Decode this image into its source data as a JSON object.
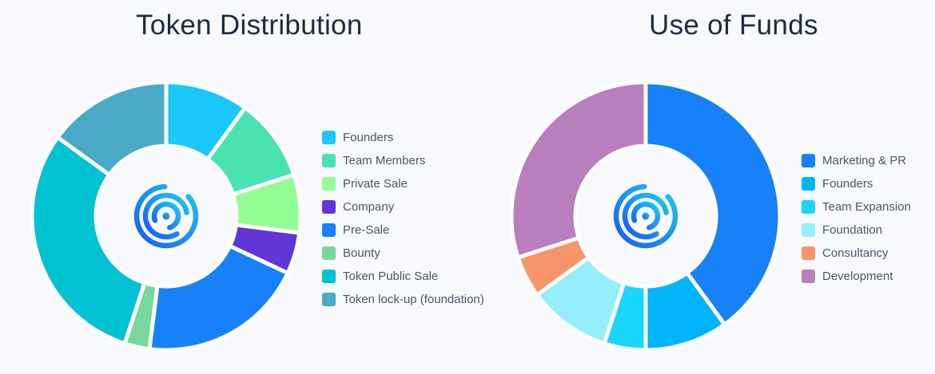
{
  "chart_data": [
    {
      "type": "pie",
      "title": "Token Distribution",
      "series": [
        {
          "label": "Founders",
          "value": 10,
          "color": "#1ac8fc"
        },
        {
          "label": "Team Members",
          "value": 10,
          "color": "#48e3b0"
        },
        {
          "label": "Private Sale",
          "value": 7,
          "color": "#92fd92"
        },
        {
          "label": "Company",
          "value": 5,
          "color": "#6237d8"
        },
        {
          "label": "Pre-Sale",
          "value": 20,
          "color": "#1681f9"
        },
        {
          "label": "Bounty",
          "value": 3,
          "color": "#77d89c"
        },
        {
          "label": "Token Public Sale",
          "value": 30,
          "color": "#00c2d3"
        },
        {
          "label": "Token lock-up (foundation)",
          "value": 15,
          "color": "#4ba9c8"
        }
      ],
      "legend": "right",
      "center_logo": "swirl-logo"
    },
    {
      "type": "pie",
      "title": "Use of Funds",
      "series": [
        {
          "label": "Marketing & PR",
          "value": 40,
          "color": "#1681f9"
        },
        {
          "label": "Founders",
          "value": 10,
          "color": "#00b4fb"
        },
        {
          "label": "Team Expansion",
          "value": 5,
          "color": "#1ad6fd"
        },
        {
          "label": "Foundation",
          "value": 10,
          "color": "#94eefd"
        },
        {
          "label": "Consultancy",
          "value": 5,
          "color": "#f7956a"
        },
        {
          "label": "Development",
          "value": 30,
          "color": "#b87ebd"
        }
      ],
      "legend": "right",
      "center_logo": "swirl-logo"
    }
  ]
}
